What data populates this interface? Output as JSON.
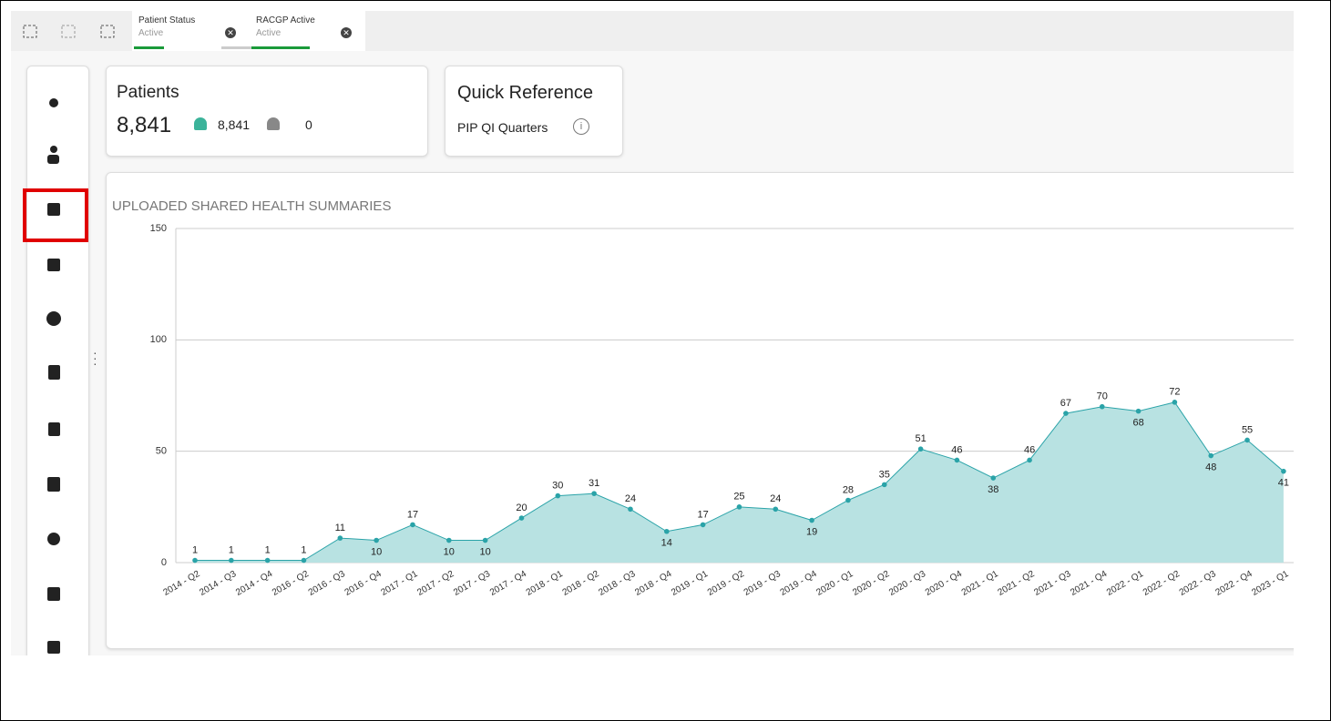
{
  "toolbar": {
    "filters": [
      {
        "label": "Patient Status",
        "value": "Active"
      },
      {
        "label": "RACGP Active",
        "value": "Active"
      }
    ]
  },
  "patients": {
    "title": "Patients",
    "total": "8,841",
    "active": "8,841",
    "inactive": "0"
  },
  "quick_reference": {
    "title": "Quick Reference",
    "link": "PIP QI Quarters"
  },
  "chart_data": {
    "type": "line",
    "title": "UPLOADED SHARED HEALTH SUMMARIES",
    "categories": [
      "2014 - Q2",
      "2014 - Q3",
      "2014 - Q4",
      "2016 - Q2",
      "2016 - Q3",
      "2016 - Q4",
      "2017 - Q1",
      "2017 - Q2",
      "2017 - Q3",
      "2017 - Q4",
      "2018 - Q1",
      "2018 - Q2",
      "2018 - Q3",
      "2018 - Q4",
      "2019 - Q1",
      "2019 - Q2",
      "2019 - Q3",
      "2019 - Q4",
      "2020 - Q1",
      "2020 - Q2",
      "2020 - Q3",
      "2020 - Q4",
      "2021 - Q1",
      "2021 - Q2",
      "2021 - Q3",
      "2021 - Q4",
      "2022 - Q1",
      "2022 - Q2",
      "2022 - Q3",
      "2022 - Q4",
      "2023 - Q1"
    ],
    "values": [
      1,
      1,
      1,
      1,
      11,
      10,
      17,
      10,
      10,
      20,
      30,
      31,
      24,
      14,
      17,
      25,
      24,
      19,
      28,
      35,
      51,
      46,
      38,
      46,
      67,
      70,
      68,
      72,
      48,
      55,
      41
    ],
    "color": "#2aa3a8",
    "area_color": "#b8e2e2",
    "ylim": [
      0,
      150
    ],
    "yticks": [
      0,
      50,
      100,
      150
    ],
    "grid": true
  }
}
